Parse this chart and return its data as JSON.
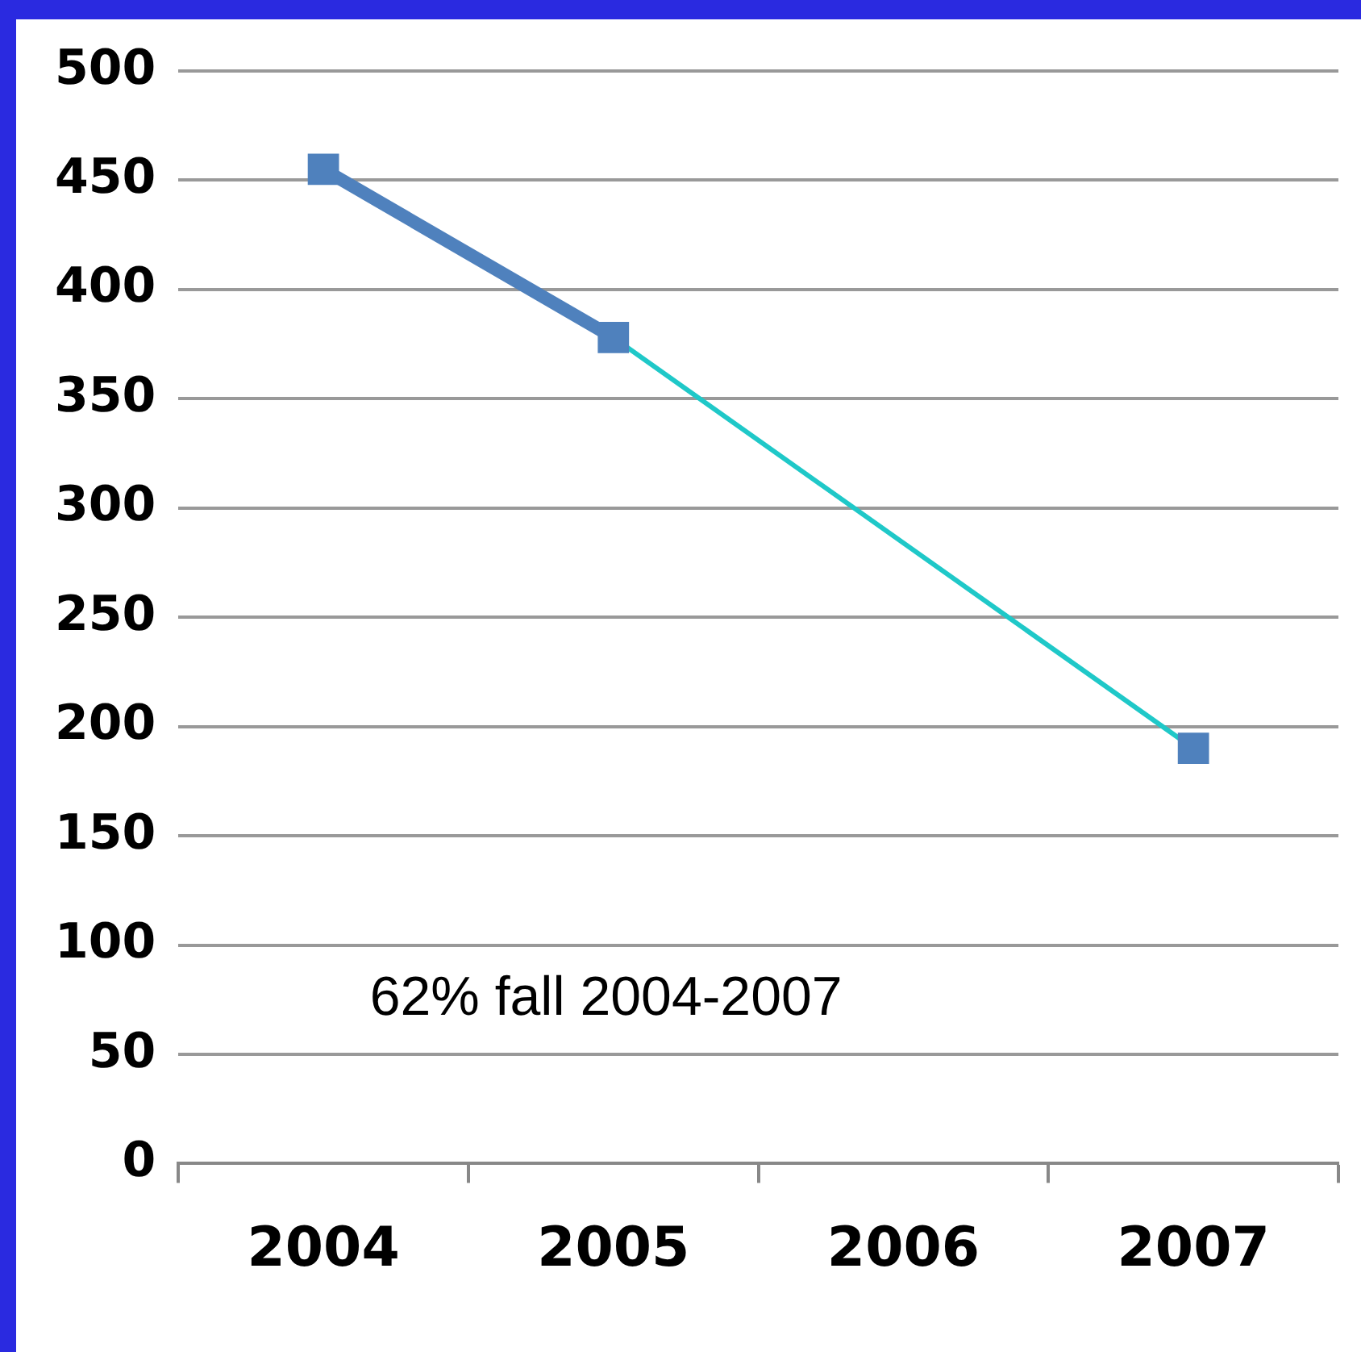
{
  "chart_data": {
    "type": "line",
    "categories": [
      "2004",
      "2005",
      "2006",
      "2007"
    ],
    "series": [
      {
        "color": "#1fc8c8",
        "values": [
          null,
          378,
          null,
          190
        ],
        "marker": "none"
      },
      {
        "color": "#4f81bd",
        "values": [
          455,
          378,
          null,
          190
        ],
        "marker": "square"
      }
    ],
    "ylim": [
      0,
      500
    ],
    "yticks": [
      0,
      50,
      100,
      150,
      200,
      250,
      300,
      350,
      400,
      450,
      500
    ],
    "grid": "y",
    "legend": false,
    "annotations": [
      "62% fall 2004-2007"
    ]
  }
}
